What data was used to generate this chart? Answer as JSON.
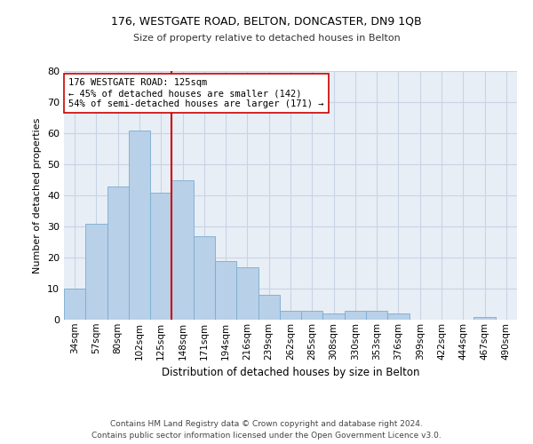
{
  "title1": "176, WESTGATE ROAD, BELTON, DONCASTER, DN9 1QB",
  "title2": "Size of property relative to detached houses in Belton",
  "xlabel": "Distribution of detached houses by size in Belton",
  "ylabel": "Number of detached properties",
  "categories": [
    "34sqm",
    "57sqm",
    "80sqm",
    "102sqm",
    "125sqm",
    "148sqm",
    "171sqm",
    "194sqm",
    "216sqm",
    "239sqm",
    "262sqm",
    "285sqm",
    "308sqm",
    "330sqm",
    "353sqm",
    "376sqm",
    "399sqm",
    "422sqm",
    "444sqm",
    "467sqm",
    "490sqm"
  ],
  "values": [
    10,
    31,
    43,
    61,
    41,
    45,
    27,
    19,
    17,
    8,
    3,
    3,
    2,
    3,
    3,
    2,
    0,
    0,
    0,
    1,
    0
  ],
  "bar_color": "#b8d0e8",
  "bar_edge_color": "#7aacd0",
  "vline_index": 4,
  "vline_color": "#cc0000",
  "annotation_text": "176 WESTGATE ROAD: 125sqm\n← 45% of detached houses are smaller (142)\n54% of semi-detached houses are larger (171) →",
  "annotation_box_facecolor": "#ffffff",
  "annotation_box_edgecolor": "#cc0000",
  "ylim": [
    0,
    80
  ],
  "yticks": [
    0,
    10,
    20,
    30,
    40,
    50,
    60,
    70,
    80
  ],
  "grid_color": "#c8d4e4",
  "bg_color": "#e8eef6",
  "footer": "Contains HM Land Registry data © Crown copyright and database right 2024.\nContains public sector information licensed under the Open Government Licence v3.0."
}
